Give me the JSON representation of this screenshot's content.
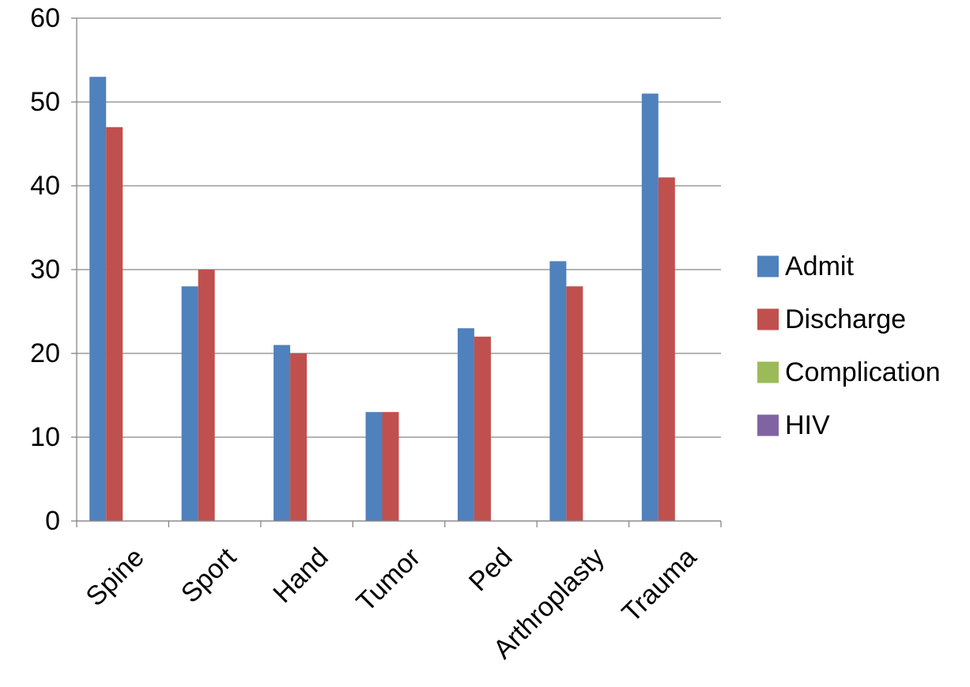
{
  "chart_data": {
    "type": "bar",
    "categories": [
      "Spine",
      "Sport",
      "Hand",
      "Tumor",
      "Ped",
      "Arthroplasty",
      "Trauma"
    ],
    "series": [
      {
        "name": "Admit",
        "color": "#4F81BD",
        "values": [
          53,
          28,
          21,
          13,
          23,
          31,
          51
        ]
      },
      {
        "name": "Discharge",
        "color": "#C0504D",
        "values": [
          47,
          30,
          20,
          13,
          22,
          28,
          41
        ]
      },
      {
        "name": "Complication",
        "color": "#9BBB59",
        "values": [
          0,
          0,
          0,
          0,
          0,
          0,
          0
        ]
      },
      {
        "name": "HIV",
        "color": "#8064A2",
        "values": [
          0,
          0,
          0,
          0,
          0,
          0,
          0
        ]
      }
    ],
    "ylim": [
      0,
      60
    ],
    "yticks": [
      0,
      10,
      20,
      30,
      40,
      50,
      60
    ],
    "grid": true,
    "legend": "right",
    "title": "",
    "xlabel": "",
    "ylabel": ""
  }
}
